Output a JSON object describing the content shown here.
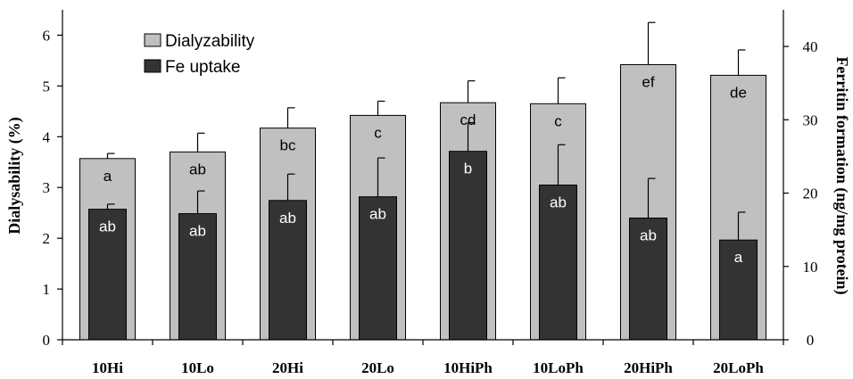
{
  "chart_data": {
    "type": "bar",
    "categories": [
      "10Hi",
      "10Lo",
      "20Hi",
      "20Lo",
      "10HiPh",
      "10LoPh",
      "20HiPh",
      "20LoPh"
    ],
    "series": [
      {
        "name": "Dialyzability",
        "axis": "left",
        "color": "#c0c0c0",
        "values": [
          3.57,
          3.7,
          4.17,
          4.42,
          4.67,
          4.65,
          5.42,
          5.21
        ],
        "error": [
          0.1,
          0.37,
          0.4,
          0.28,
          0.43,
          0.51,
          0.83,
          0.5
        ],
        "labels": [
          "a",
          "ab",
          "bc",
          "c",
          "cd",
          "c",
          "ef",
          "de"
        ]
      },
      {
        "name": "Fe uptake",
        "axis": "right",
        "color": "#333333",
        "values": [
          17.8,
          17.2,
          19.0,
          19.5,
          25.7,
          21.1,
          16.6,
          13.6
        ],
        "error": [
          0.7,
          3.1,
          3.6,
          5.3,
          3.9,
          5.5,
          5.4,
          3.8
        ],
        "labels": [
          "ab",
          "ab",
          "ab",
          "ab",
          "b",
          "ab",
          "ab",
          "a"
        ]
      }
    ],
    "ylabel": "Dialysability (%)",
    "ylabel_right": "Ferritin formation (ng/mg protein)",
    "ylim": [
      0,
      6.5
    ],
    "ylim_right": [
      0,
      45
    ],
    "yticks": [
      0,
      1,
      2,
      3,
      4,
      5,
      6
    ],
    "yticks_right": [
      0,
      10,
      20,
      30,
      40
    ],
    "legend": "top-left",
    "grid": false
  }
}
